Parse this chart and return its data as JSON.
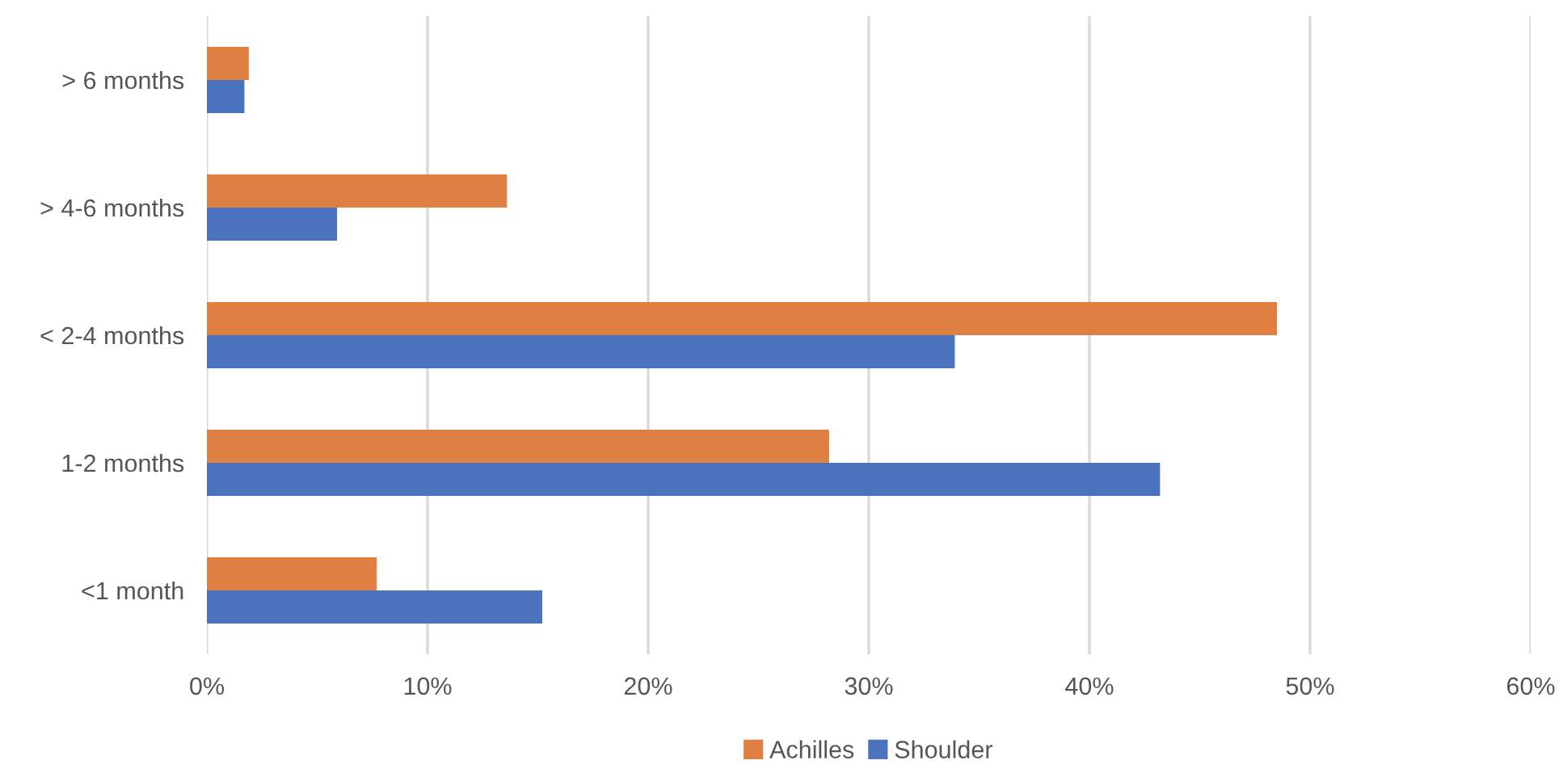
{
  "chart_data": {
    "type": "bar",
    "orientation": "horizontal",
    "categories": [
      "> 6 months",
      "> 4-6 months",
      "< 2-4 months",
      "1-2 months",
      "<1 month"
    ],
    "series": [
      {
        "name": "Achilles",
        "color": "#e07f42",
        "values": [
          1.9,
          13.6,
          48.5,
          28.2,
          7.7
        ]
      },
      {
        "name": "Shoulder",
        "color": "#4a72bd",
        "values": [
          1.7,
          5.9,
          33.9,
          43.2,
          15.2
        ]
      }
    ],
    "xlim": [
      0,
      60
    ],
    "xticks": [
      {
        "value": 0,
        "label": "0%"
      },
      {
        "value": 10,
        "label": "10%"
      },
      {
        "value": 20,
        "label": "20%"
      },
      {
        "value": 30,
        "label": "30%"
      },
      {
        "value": 40,
        "label": "40%"
      },
      {
        "value": 50,
        "label": "50%"
      },
      {
        "value": 60,
        "label": "60%"
      }
    ],
    "grid": "x",
    "legend": "bottom"
  }
}
